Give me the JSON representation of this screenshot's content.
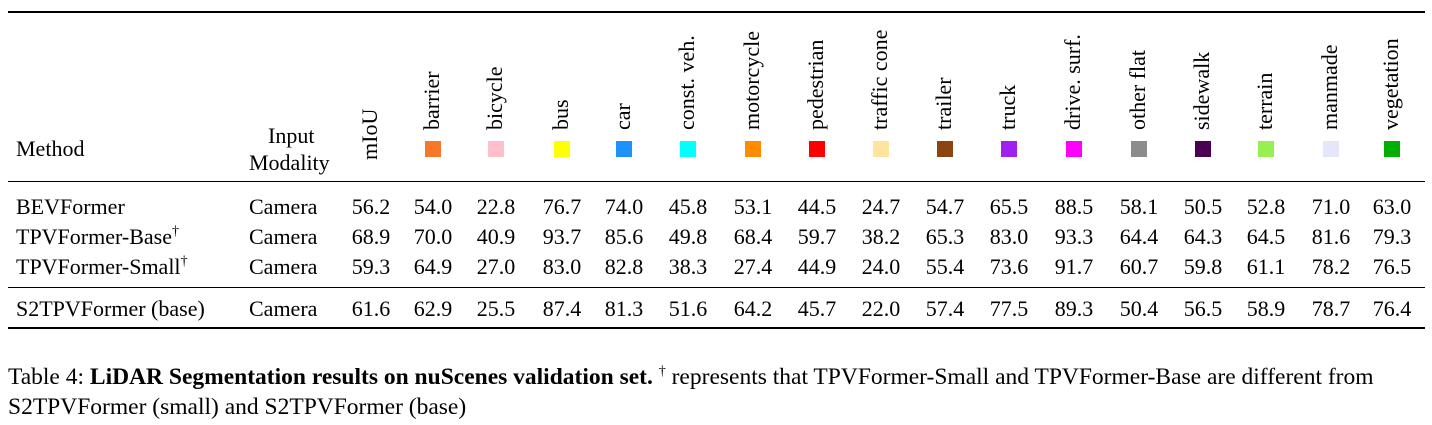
{
  "table": {
    "headers": {
      "method": "Method",
      "input_line1": "Input",
      "input_line2": "Modality",
      "miou": "mIoU"
    },
    "classes": [
      {
        "name": "barrier",
        "color": "#f7782b"
      },
      {
        "name": "bicycle",
        "color": "#ffc0cb"
      },
      {
        "name": "bus",
        "color": "#ffff00"
      },
      {
        "name": "car",
        "color": "#1e90ff"
      },
      {
        "name": "const. veh.",
        "color": "#00ffff"
      },
      {
        "name": "motorcycle",
        "color": "#ff8c00"
      },
      {
        "name": "pedestrian",
        "color": "#ff0000"
      },
      {
        "name": "traffic cone",
        "color": "#ffe4a0"
      },
      {
        "name": "trailer",
        "color": "#8b4513"
      },
      {
        "name": "truck",
        "color": "#a020f0"
      },
      {
        "name": "drive. surf.",
        "color": "#ff00ff"
      },
      {
        "name": "other flat",
        "color": "#8c8c8c"
      },
      {
        "name": "sidewalk",
        "color": "#4b0055"
      },
      {
        "name": "terrain",
        "color": "#96f050"
      },
      {
        "name": "manmade",
        "color": "#e6e6fa"
      },
      {
        "name": "vegetation",
        "color": "#00af00"
      }
    ],
    "rows": [
      {
        "method": "BEVFormer",
        "sup": "",
        "modality": "Camera",
        "values": [
          "56.2",
          "54.0",
          "22.8",
          "76.7",
          "74.0",
          "45.8",
          "53.1",
          "44.5",
          "24.7",
          "54.7",
          "65.5",
          "88.5",
          "58.1",
          "50.5",
          "52.8",
          "71.0",
          "63.0"
        ]
      },
      {
        "method": "TPVFormer-Base",
        "sup": "†",
        "modality": "Camera",
        "values": [
          "68.9",
          "70.0",
          "40.9",
          "93.7",
          "85.6",
          "49.8",
          "68.4",
          "59.7",
          "38.2",
          "65.3",
          "83.0",
          "93.3",
          "64.4",
          "64.3",
          "64.5",
          "81.6",
          "79.3"
        ]
      },
      {
        "method": "TPVFormer-Small",
        "sup": "†",
        "modality": "Camera",
        "values": [
          "59.3",
          "64.9",
          "27.0",
          "83.0",
          "82.8",
          "38.3",
          "27.4",
          "44.9",
          "24.0",
          "55.4",
          "73.6",
          "91.7",
          "60.7",
          "59.8",
          "61.1",
          "78.2",
          "76.5"
        ]
      },
      {
        "method": "S2TPVFormer (base)",
        "sup": "",
        "modality": "Camera",
        "values": [
          "61.6",
          "62.9",
          "25.5",
          "87.4",
          "81.3",
          "51.6",
          "64.2",
          "45.7",
          "22.0",
          "57.4",
          "77.5",
          "89.3",
          "50.4",
          "56.5",
          "58.9",
          "78.7",
          "76.4"
        ]
      }
    ]
  },
  "caption": {
    "label": "Table 4:",
    "bold": "LiDAR Segmentation results on nuScenes validation set.",
    "dagger": "†",
    "rest": "represents that TPVFormer-Small and TPVFormer-Base are different from S2TPVFormer (small) and S2TPVFormer (base)"
  }
}
